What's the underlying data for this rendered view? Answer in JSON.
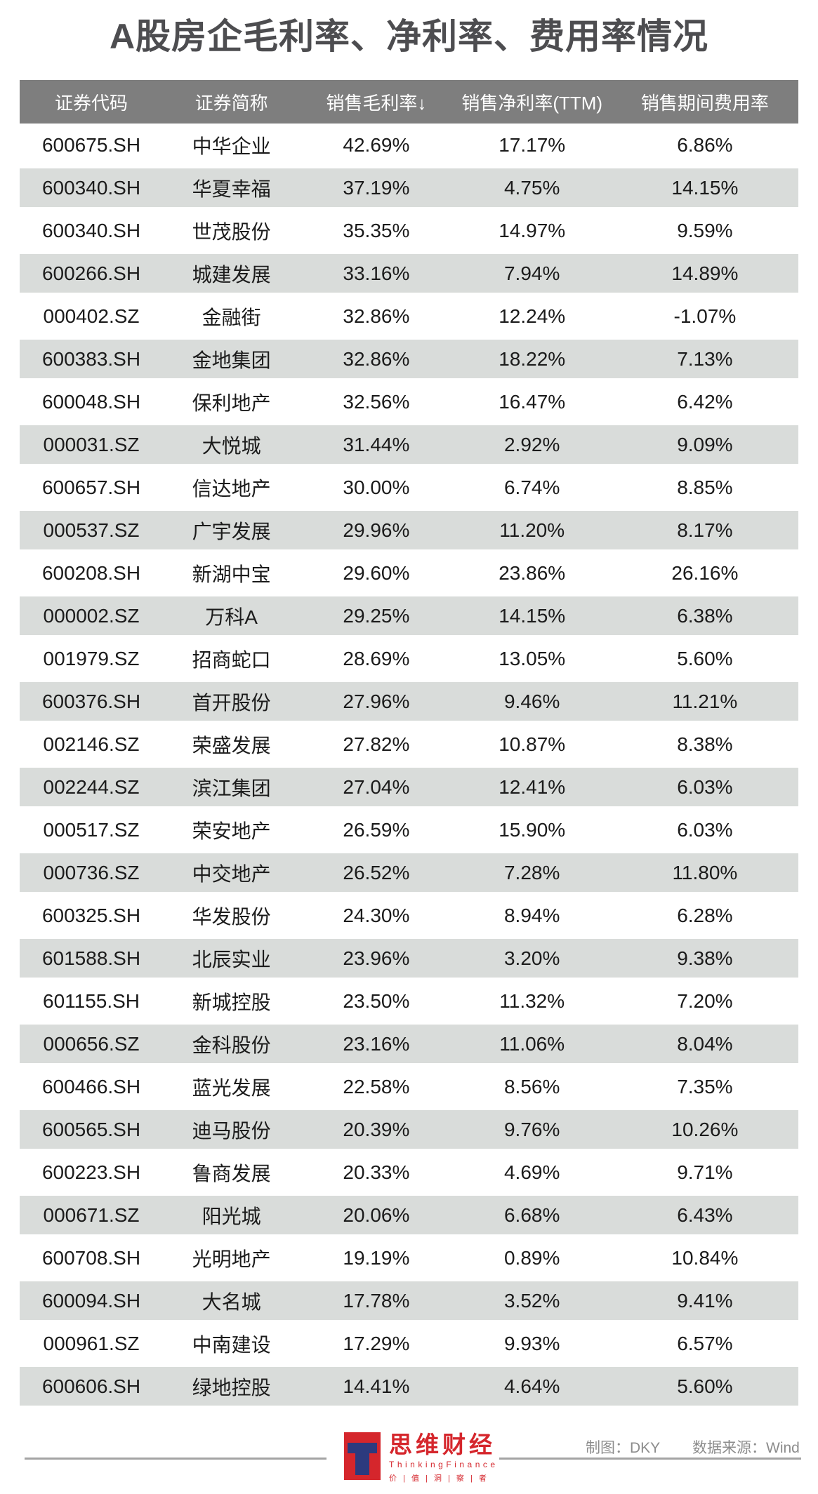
{
  "title": "A股房企毛利率、净利率、费用率情况",
  "chart_data": {
    "type": "table",
    "title": "A股房企毛利率、净利率、费用率情况",
    "columns": [
      "证券代码",
      "证券简称",
      "销售毛利率↓",
      "销售净利率(TTM)",
      "销售期间费用率"
    ],
    "rows": [
      [
        "600675.SH",
        "中华企业",
        "42.69%",
        "17.17%",
        "6.86%"
      ],
      [
        "600340.SH",
        "华夏幸福",
        "37.19%",
        "4.75%",
        "14.15%"
      ],
      [
        "600340.SH",
        "世茂股份",
        "35.35%",
        "14.97%",
        "9.59%"
      ],
      [
        "600266.SH",
        "城建发展",
        "33.16%",
        "7.94%",
        "14.89%"
      ],
      [
        "000402.SZ",
        "金融街",
        "32.86%",
        "12.24%",
        "-1.07%"
      ],
      [
        "600383.SH",
        "金地集团",
        "32.86%",
        "18.22%",
        "7.13%"
      ],
      [
        "600048.SH",
        "保利地产",
        "32.56%",
        "16.47%",
        "6.42%"
      ],
      [
        "000031.SZ",
        "大悦城",
        "31.44%",
        "2.92%",
        "9.09%"
      ],
      [
        "600657.SH",
        "信达地产",
        "30.00%",
        "6.74%",
        "8.85%"
      ],
      [
        "000537.SZ",
        "广宇发展",
        "29.96%",
        "11.20%",
        "8.17%"
      ],
      [
        "600208.SH",
        "新湖中宝",
        "29.60%",
        "23.86%",
        "26.16%"
      ],
      [
        "000002.SZ",
        "万科A",
        "29.25%",
        "14.15%",
        "6.38%"
      ],
      [
        "001979.SZ",
        "招商蛇口",
        "28.69%",
        "13.05%",
        "5.60%"
      ],
      [
        "600376.SH",
        "首开股份",
        "27.96%",
        "9.46%",
        "11.21%"
      ],
      [
        "002146.SZ",
        "荣盛发展",
        "27.82%",
        "10.87%",
        "8.38%"
      ],
      [
        "002244.SZ",
        "滨江集团",
        "27.04%",
        "12.41%",
        "6.03%"
      ],
      [
        "000517.SZ",
        "荣安地产",
        "26.59%",
        "15.90%",
        "6.03%"
      ],
      [
        "000736.SZ",
        "中交地产",
        "26.52%",
        "7.28%",
        "11.80%"
      ],
      [
        "600325.SH",
        "华发股份",
        "24.30%",
        "8.94%",
        "6.28%"
      ],
      [
        "601588.SH",
        "北辰实业",
        "23.96%",
        "3.20%",
        "9.38%"
      ],
      [
        "601155.SH",
        "新城控股",
        "23.50%",
        "11.32%",
        "7.20%"
      ],
      [
        "000656.SZ",
        "金科股份",
        "23.16%",
        "11.06%",
        "8.04%"
      ],
      [
        "600466.SH",
        "蓝光发展",
        "22.58%",
        "8.56%",
        "7.35%"
      ],
      [
        "600565.SH",
        "迪马股份",
        "20.39%",
        "9.76%",
        "10.26%"
      ],
      [
        "600223.SH",
        "鲁商发展",
        "20.33%",
        "4.69%",
        "9.71%"
      ],
      [
        "000671.SZ",
        "阳光城",
        "20.06%",
        "6.68%",
        "6.43%"
      ],
      [
        "600708.SH",
        "光明地产",
        "19.19%",
        "0.89%",
        "10.84%"
      ],
      [
        "600094.SH",
        "大名城",
        "17.78%",
        "3.52%",
        "9.41%"
      ],
      [
        "000961.SZ",
        "中南建设",
        "17.29%",
        "9.93%",
        "6.57%"
      ],
      [
        "600606.SH",
        "绿地控股",
        "14.41%",
        "4.64%",
        "5.60%"
      ]
    ],
    "layout": {
      "striped": true,
      "sorted_by": "销售毛利率",
      "sort_direction": "descending"
    }
  },
  "footer": {
    "logo_cn": "思维财经",
    "logo_en": "ThinkingFinance",
    "logo_tagline": "价 | 值 | 洞 | 察 | 者",
    "credit": "制图：DKY",
    "source": "数据来源：Wind"
  },
  "colors": {
    "title_color": "#4d4d50",
    "header_bg": "#7e7e7e",
    "stripe_bg": "#d9dcda",
    "line": "#a3a3a3",
    "footer_text": "#8c8c8c",
    "logo_red": "#d5262c",
    "logo_navy": "#2c3a7e"
  }
}
